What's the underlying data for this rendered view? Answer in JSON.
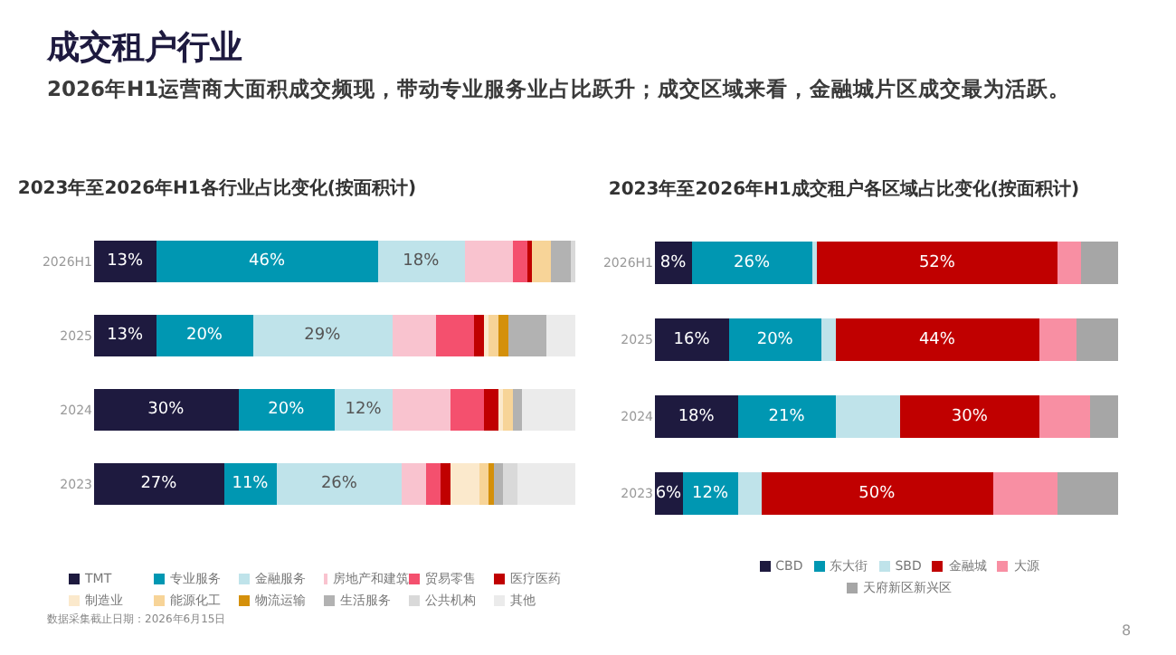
{
  "chart_data": [
    {
      "type": "other",
      "title": "成交租户行业",
      "subtitle": "2026年H1运营商大面积成交频现，带动专业服务业占比跃升；成交区域来看，金融城片区成交最为活跃。"
    },
    {
      "type": "bar",
      "orientation": "horizontal",
      "stacked": true,
      "xlim": [
        0,
        100
      ],
      "tick_labels": "y",
      "legend": "bottom",
      "title": "2023年至2026年H1各行业占比变化(按面积计)",
      "categories": [
        "2026H1",
        "2025",
        "2024",
        "2023"
      ],
      "annotations": [
        "数据采集截止日期：2026年6月15日"
      ],
      "series": [
        {
          "name": "TMT",
          "color": "#1e1a3f",
          "values": [
            13,
            13,
            30,
            27
          ],
          "value_labels": [
            "13%",
            "13%",
            "30%",
            "27%"
          ]
        },
        {
          "name": "专业服务",
          "color": "#0097b2",
          "values": [
            46,
            20,
            20,
            11
          ],
          "value_labels": [
            "46%",
            "20%",
            "20%",
            "11%"
          ]
        },
        {
          "name": "金融服务",
          "color": "#bfe3ea",
          "values": [
            18,
            29,
            12,
            26
          ],
          "value_labels": [
            "18%",
            "29%",
            "12%",
            "26%"
          ]
        },
        {
          "name": "房地产和建筑",
          "color": "#f9c3cf",
          "values": [
            10,
            9,
            12,
            5
          ],
          "value_labels": [
            null,
            null,
            null,
            null
          ]
        },
        {
          "name": "贸易零售",
          "color": "#f4506e",
          "values": [
            3,
            8,
            7,
            3
          ],
          "value_labels": [
            null,
            null,
            null,
            null
          ]
        },
        {
          "name": "医疗医药",
          "color": "#c00000",
          "values": [
            1,
            2,
            3,
            2
          ],
          "value_labels": [
            null,
            null,
            null,
            null
          ]
        },
        {
          "name": "制造业",
          "color": "#fbe9cc",
          "values": [
            0,
            1,
            1,
            6
          ],
          "value_labels": [
            null,
            null,
            null,
            null
          ]
        },
        {
          "name": "能源化工",
          "color": "#f7d498",
          "values": [
            4,
            2,
            2,
            2
          ],
          "value_labels": [
            null,
            null,
            null,
            null
          ]
        },
        {
          "name": "物流运输",
          "color": "#d4900b",
          "values": [
            0,
            2,
            0,
            1
          ],
          "value_labels": [
            null,
            null,
            null,
            null
          ]
        },
        {
          "name": "生活服务",
          "color": "#b2b2b2",
          "values": [
            4,
            8,
            2,
            2
          ],
          "value_labels": [
            null,
            null,
            null,
            null
          ]
        },
        {
          "name": "公共机构",
          "color": "#d9d9d9",
          "values": [
            1,
            0,
            0,
            3
          ],
          "value_labels": [
            null,
            null,
            null,
            null
          ]
        },
        {
          "name": "其他",
          "color": "#ebebeb",
          "values": [
            0,
            6,
            11,
            12
          ],
          "value_labels": [
            null,
            null,
            null,
            null
          ]
        }
      ]
    },
    {
      "type": "bar",
      "orientation": "horizontal",
      "stacked": true,
      "xlim": [
        0,
        100
      ],
      "tick_labels": "y",
      "legend": "bottom",
      "title": "2023年至2026年H1成交租户各区域占比变化(按面积计)",
      "categories": [
        "2026H1",
        "2025",
        "2024",
        "2023"
      ],
      "annotations": [
        "8"
      ],
      "series": [
        {
          "name": "CBD",
          "color": "#1e1a3f",
          "values": [
            8,
            16,
            18,
            6
          ],
          "value_labels": [
            "8%",
            "16%",
            "18%",
            "6%"
          ]
        },
        {
          "name": "东大街",
          "color": "#0097b2",
          "values": [
            26,
            20,
            21,
            12
          ],
          "value_labels": [
            "26%",
            "20%",
            "21%",
            "12%"
          ]
        },
        {
          "name": "SBD",
          "color": "#bfe3ea",
          "values": [
            1,
            3,
            14,
            5
          ],
          "value_labels": [
            null,
            null,
            null,
            null
          ]
        },
        {
          "name": "金融城",
          "color": "#c00000",
          "values": [
            52,
            44,
            30,
            50
          ],
          "value_labels": [
            "52%",
            "44%",
            "30%",
            "50%"
          ]
        },
        {
          "name": "大源",
          "color": "#f88fa3",
          "values": [
            5,
            8,
            11,
            14
          ],
          "value_labels": [
            null,
            null,
            null,
            null
          ]
        },
        {
          "name": "天府新区新兴区",
          "color": "#a6a6a6",
          "values": [
            8,
            9,
            6,
            13
          ],
          "value_labels": [
            null,
            null,
            null,
            null
          ]
        }
      ]
    }
  ]
}
